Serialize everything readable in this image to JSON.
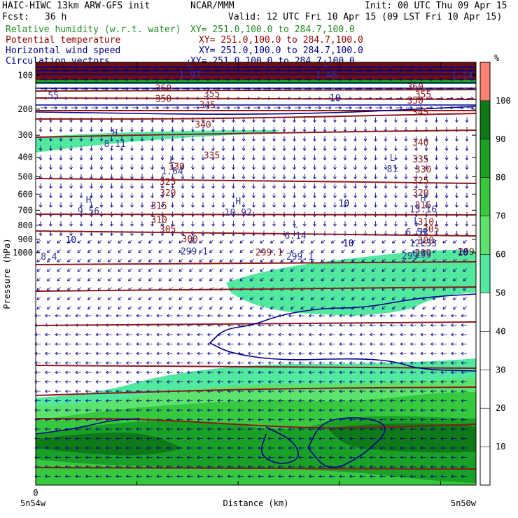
{
  "header": {
    "line1_left": "HAIC-HIWC 13km ARW-GFS init",
    "line1_mid": "NCAR/MMM",
    "line1_right": "Init: 00 UTC Thu 09 Apr 15",
    "line2_left": "Fcst:",
    "line2_fcst": "36 h",
    "line2_right": "Valid: 12 UTC Fri 10 Apr 15 (09 LST Fri 10 Apr 15)"
  },
  "fields": [
    {
      "name": "Relative humidity (w.r.t. water)",
      "xy": "XY= 251.0,100.0 to 284.7,100.0",
      "color": "#228b22"
    },
    {
      "name": "Potential temperature",
      "xy": "XY= 251.0,100.0 to 284.7,100.0",
      "color": "#8b0000"
    },
    {
      "name": "Horizontal wind speed",
      "xy": "XY= 251.0,100.0 to 284.7,100.0",
      "color": "#000080"
    },
    {
      "name": "Circulation vectors",
      "xy": "XY= 251.0,100.0 to 284.7,100.0",
      "color": "#000080"
    }
  ],
  "chart_data": {
    "type": "heatmap",
    "ylabel": "Pressure (hPa)",
    "xlabel": "Distance (km)",
    "x_ticks": [
      {
        "value": 0,
        "label": "0"
      }
    ],
    "x_end_labels": [
      "5n54w",
      "5n50w"
    ],
    "y_ticks": [
      100,
      200,
      300,
      400,
      500,
      600,
      700,
      800,
      900,
      1000
    ],
    "colorbar": {
      "unit": "%",
      "levels": [
        10,
        20,
        30,
        40,
        50,
        60,
        70,
        80,
        90,
        100
      ],
      "band_colors": [
        "#ffffff",
        "#ffffff",
        "#ffffff",
        "#ffffff",
        "#ffffff",
        "#52e89e",
        "#5ce36b",
        "#36c93e",
        "#19a125",
        "#0e7a17",
        "#fa8072"
      ]
    },
    "theta_labels": [
      {
        "v": "360",
        "p": 133,
        "f": 0.29
      },
      {
        "v": "355",
        "p": 150,
        "f": 0.4
      },
      {
        "v": "350",
        "p": 165,
        "f": 0.29
      },
      {
        "v": "345",
        "p": 185,
        "f": 0.39
      },
      {
        "v": "340",
        "p": 255,
        "f": 0.38
      },
      {
        "v": "335",
        "p": 390,
        "f": 0.4
      },
      {
        "v": "330",
        "p": 445,
        "f": 0.32
      },
      {
        "v": "325",
        "p": 525,
        "f": 0.3
      },
      {
        "v": "320",
        "p": 590,
        "f": 0.3
      },
      {
        "v": "315",
        "p": 670,
        "f": 0.28
      },
      {
        "v": "310",
        "p": 760,
        "f": 0.28
      },
      {
        "v": "305",
        "p": 825,
        "f": 0.3
      },
      {
        "v": "300",
        "p": 895,
        "f": 0.35
      },
      {
        "v": "360",
        "p": 130,
        "f": 1.14
      },
      {
        "v": "355",
        "p": 152,
        "f": 1.2
      },
      {
        "v": "350",
        "p": 170,
        "f": 1.14
      },
      {
        "v": "345",
        "p": 210,
        "f": 1.18
      },
      {
        "v": "340",
        "p": 330,
        "f": 1.18
      },
      {
        "v": "335",
        "p": 408,
        "f": 1.18
      },
      {
        "v": "330",
        "p": 460,
        "f": 1.2
      },
      {
        "v": "325",
        "p": 520,
        "f": 1.18
      },
      {
        "v": "320",
        "p": 590,
        "f": 1.18
      },
      {
        "v": "315",
        "p": 665,
        "f": 1.2
      },
      {
        "v": "310",
        "p": 775,
        "f": 1.22
      },
      {
        "v": "305",
        "p": 825,
        "f": 1.26
      },
      {
        "v": "300",
        "p": 905,
        "f": 1.22
      },
      {
        "v": "299",
        "p": 1000,
        "f": 1.2
      },
      {
        "v": "299.1",
        "p": 995,
        "f": 0.53
      },
      {
        "v": "299",
        "p": 990,
        "f": 1.0
      }
    ],
    "wind_labels": [
      {
        "v": "10",
        "p": 162,
        "f": 0.68
      },
      {
        "v": "10",
        "p": 655,
        "f": 0.7
      },
      {
        "v": "10",
        "p": 900,
        "f": 0.08
      },
      {
        "v": "10",
        "p": 925,
        "f": 0.71
      },
      {
        "v": "10",
        "p": 995,
        "f": 0.97
      }
    ],
    "highs_lows": [
      {
        "type": "L",
        "value": "1.97",
        "p": 90,
        "f": 0.35
      },
      {
        "type": "L",
        "value": "1.46",
        "p": 90,
        "f": 0.66
      },
      {
        "type": "",
        "value": "1.14",
        "p": 92,
        "f": 0.99
      },
      {
        "type": "",
        "value": "55",
        "p": 145,
        "f": 0.04
      },
      {
        "type": "H",
        "value": "8.11",
        "p": 320,
        "f": 0.18
      },
      {
        "type": "L",
        "value": "1.64",
        "p": 450,
        "f": 0.31
      },
      {
        "type": "L",
        "value": "81",
        "p": 440,
        "f": 0.81
      },
      {
        "type": "H",
        "value": "9.56",
        "p": 680,
        "f": 0.12
      },
      {
        "type": "H",
        "value": "10.92",
        "p": 690,
        "f": 0.46
      },
      {
        "type": "H",
        "value": "13.16",
        "p": 670,
        "f": 0.88
      },
      {
        "type": "L",
        "value": "6.14",
        "p": 845,
        "f": 0.59
      },
      {
        "type": "L",
        "value": "6.59",
        "p": 820,
        "f": 1.05
      },
      {
        "type": "H",
        "value": "12.33",
        "p": 900,
        "f": 0.88
      },
      {
        "type": "L",
        "value": "299.1",
        "p": 960,
        "f": 0.36
      },
      {
        "type": "",
        "value": "8.4",
        "p": 1000,
        "f": 0.03
      },
      {
        "type": "",
        "value": "299.1",
        "p": 1000,
        "f": 0.6
      },
      {
        "type": "",
        "value": "299",
        "p": 995,
        "f": 0.85
      },
      {
        "type": "L",
        "value": "299",
        "p": 985,
        "f": 1.1
      }
    ],
    "colors": {
      "theta": "#8b1a1a",
      "wind": "#00008b",
      "vectors": "#00008b",
      "label": "#333399"
    }
  }
}
